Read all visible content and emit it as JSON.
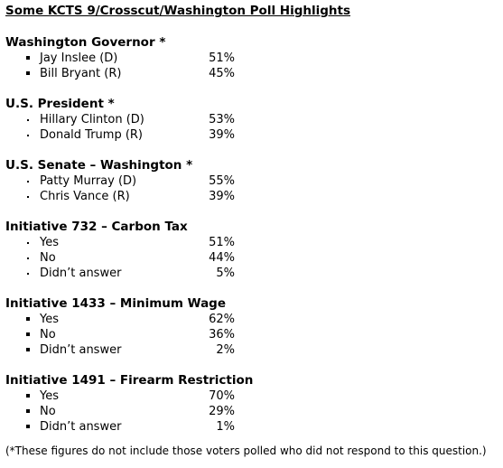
{
  "title": "Some KCTS 9/Crosscut/Washington Poll Highlights",
  "sections": [
    {
      "heading": "Washington Governor *",
      "bullet": "square",
      "rows": [
        {
          "label": "Jay Inslee (D)",
          "value": "51%"
        },
        {
          "label": "Bill Bryant (R)",
          "value": "45%"
        }
      ]
    },
    {
      "heading": "U.S. President *",
      "bullet": "dot",
      "rows": [
        {
          "label": "Hillary Clinton (D)",
          "value": "53%"
        },
        {
          "label": "Donald Trump (R)",
          "value": "39%"
        }
      ]
    },
    {
      "heading": "U.S. Senate – Washington *",
      "bullet": "dot",
      "rows": [
        {
          "label": "Patty Murray (D)",
          "value": "55%"
        },
        {
          "label": "Chris Vance (R)",
          "value": "39%"
        }
      ]
    },
    {
      "heading": "Initiative 732 – Carbon Tax",
      "bullet": "dot",
      "rows": [
        {
          "label": "Yes",
          "value": "51%"
        },
        {
          "label": "No",
          "value": "44%"
        },
        {
          "label": "Didn’t answer",
          "value": "5%"
        }
      ]
    },
    {
      "heading": "Initiative 1433 – Minimum Wage",
      "bullet": "square",
      "rows": [
        {
          "label": "Yes",
          "value": "62%"
        },
        {
          "label": "No",
          "value": "36%"
        },
        {
          "label": "Didn’t answer",
          "value": "2%"
        }
      ]
    },
    {
      "heading": "Initiative 1491 – Firearm Restriction",
      "bullet": "square",
      "rows": [
        {
          "label": "Yes",
          "value": "70%"
        },
        {
          "label": "No",
          "value": "29%"
        },
        {
          "label": "Didn’t answer",
          "value": "1%"
        }
      ]
    }
  ],
  "footnote": "(*These figures do not include those voters polled who did not respond to this question.)"
}
